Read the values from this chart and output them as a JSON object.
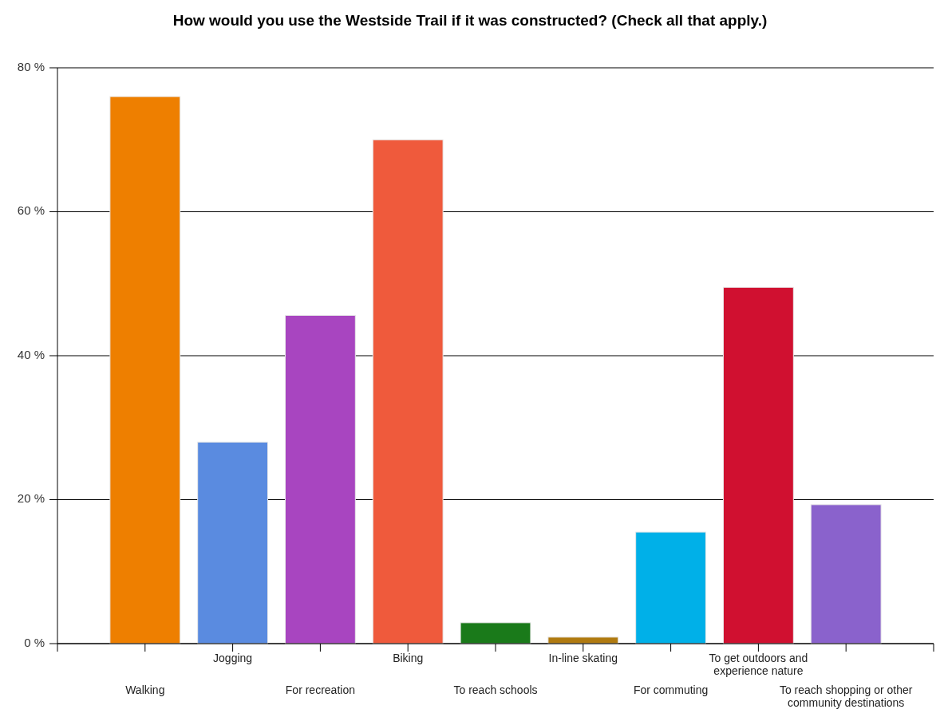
{
  "chart_data": {
    "type": "bar",
    "title": "How would you use the Westside Trail if it was constructed? (Check all that apply.)",
    "categories": [
      "Walking",
      "Jogging",
      "For recreation",
      "Biking",
      "To reach schools",
      "In-line skating",
      "For commuting",
      "To get outdoors and experience nature",
      "To reach shopping or other community destinations"
    ],
    "values": [
      76,
      28,
      45.6,
      70,
      2.9,
      0.9,
      15.5,
      49.5,
      19.3
    ],
    "colors": [
      "#ee7f00",
      "#5a8be0",
      "#a845c0",
      "#ef5a3c",
      "#1a7a1a",
      "#b07a10",
      "#00b0e8",
      "#d01030",
      "#8a62cc"
    ],
    "ylim": [
      0,
      80
    ],
    "yticks": [
      {
        "value": 0,
        "label": "0 %"
      },
      {
        "value": 20,
        "label": "20 %"
      },
      {
        "value": 40,
        "label": "40 %"
      },
      {
        "value": 60,
        "label": "60 %"
      },
      {
        "value": 80,
        "label": "80 %"
      }
    ],
    "grid": "y"
  }
}
